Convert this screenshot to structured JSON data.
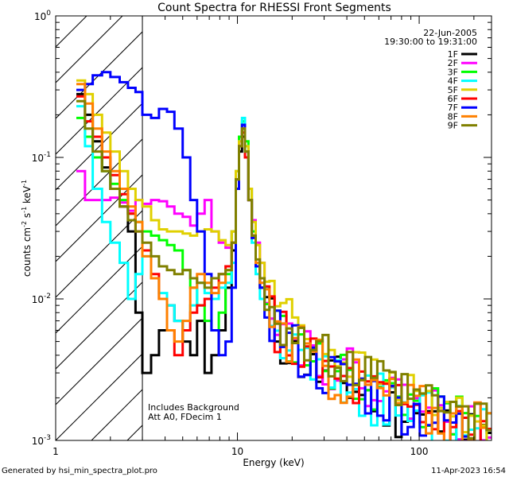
{
  "chart_data": {
    "type": "line",
    "title": "Count Spectra for RHESSI Front Segments",
    "xlabel": "Energy (keV)",
    "ylabel_parts": [
      "counts cm",
      "-2",
      " s",
      "-1",
      " keV",
      "-1"
    ],
    "xscale": "log",
    "yscale": "log",
    "xlim": [
      1,
      250
    ],
    "ylim": [
      0.001,
      1
    ],
    "x_ticks": [
      {
        "value": 1,
        "label": "1"
      },
      {
        "value": 10,
        "label": "10"
      },
      {
        "value": 100,
        "label": "100"
      }
    ],
    "y_ticks": [
      {
        "value": 1,
        "base": "10",
        "exp": "0"
      },
      {
        "value": 0.1,
        "base": "10",
        "exp": "-1"
      },
      {
        "value": 0.01,
        "base": "10",
        "exp": "-2"
      },
      {
        "value": 0.001,
        "base": "10",
        "exp": "-3"
      }
    ],
    "date": "22-Jun-2005",
    "time_range": "19:30:00 to 19:31:00",
    "annotations": [
      "Includes Background",
      "Att A0, FDecim 1"
    ],
    "footer_left": "Generated by hsi_min_spectra_plot.pro",
    "footer_right": "11-Apr-2023 16:54",
    "hatch_region_xmax": 3,
    "energy_edges": [
      1.3,
      1.45,
      1.6,
      1.8,
      2.0,
      2.25,
      2.5,
      2.75,
      3.0,
      3.35,
      3.7,
      4.1,
      4.5,
      5.0,
      5.5,
      6.0,
      6.6,
      7.2,
      7.9,
      8.6,
      9.3,
      9.8,
      10.2,
      10.6,
      11.0,
      11.5,
      12.0,
      12.6,
      13.3,
      14.1,
      15.0,
      16.0,
      17.2,
      18.6,
      20.0,
      21.6,
      23.3,
      25.2,
      27.2,
      29.4,
      31.7,
      34.3,
      37.0,
      40.0,
      43.2,
      46.7,
      50.4,
      54.4,
      58.8,
      63.5,
      68.6,
      74.1,
      80.0,
      86.4,
      93.3,
      100.8,
      108.9,
      117.6,
      127.0,
      137.2,
      148.2,
      160.0,
      172.8,
      186.6,
      201.6,
      217.7,
      235.1,
      250.0
    ],
    "series": [
      {
        "name": "1F",
        "color": "#000000",
        "base": [
          0.28,
          0.2,
          0.13,
          0.085,
          0.06,
          0.045,
          0.03,
          0.008,
          0.003,
          0.004,
          0.006,
          0.009,
          0.007,
          0.005,
          0.004,
          0.007,
          0.003,
          0.004,
          0.006,
          0.012,
          0.022,
          0.06,
          0.11,
          0.14,
          0.1,
          0.05,
          0.028,
          0.018,
          0.012,
          0.009,
          0.007,
          0.006,
          0.005,
          0.0045,
          0.004,
          0.0037,
          0.0034,
          0.0031,
          0.003,
          0.0028,
          0.0027,
          0.0026,
          0.0025,
          0.0024,
          0.0023,
          0.0022,
          0.0021,
          0.002,
          0.0019,
          0.0018,
          0.0017,
          0.0016,
          0.0016,
          0.0015,
          0.0015,
          0.0014,
          0.0014,
          0.0013,
          0.0013,
          0.0012,
          0.0012,
          0.0012,
          0.0011,
          0.0011,
          0.0011,
          0.001,
          0.001
        ],
        "jitter": 0.45,
        "seed": 11
      },
      {
        "name": "2F",
        "color": "#ff00ff",
        "base": [
          0.08,
          0.05,
          0.05,
          0.05,
          0.052,
          0.048,
          0.042,
          0.05,
          0.047,
          0.05,
          0.049,
          0.045,
          0.04,
          0.038,
          0.033,
          0.04,
          0.05,
          0.03,
          0.025,
          0.023,
          0.03,
          0.07,
          0.12,
          0.16,
          0.11,
          0.06,
          0.036,
          0.025,
          0.018,
          0.013,
          0.01,
          0.008,
          0.0068,
          0.006,
          0.0054,
          0.005,
          0.0046,
          0.0042,
          0.0038,
          0.0036,
          0.0034,
          0.0032,
          0.0031,
          0.003,
          0.0028,
          0.0027,
          0.0026,
          0.0025,
          0.0024,
          0.0023,
          0.0022,
          0.0021,
          0.002,
          0.002,
          0.0019,
          0.0018,
          0.0018,
          0.0017,
          0.0016,
          0.0016,
          0.0015,
          0.0015,
          0.0014,
          0.0014,
          0.0013,
          0.0013,
          0.0013
        ],
        "jitter": 0.4,
        "seed": 22
      },
      {
        "name": "3F",
        "color": "#00ff00",
        "base": [
          0.19,
          0.14,
          0.1,
          0.08,
          0.065,
          0.05,
          0.04,
          0.035,
          0.03,
          0.028,
          0.026,
          0.024,
          0.022,
          0.016,
          0.012,
          0.009,
          0.007,
          0.006,
          0.008,
          0.015,
          0.03,
          0.08,
          0.14,
          0.18,
          0.13,
          0.06,
          0.03,
          0.018,
          0.012,
          0.009,
          0.0075,
          0.0065,
          0.0058,
          0.0052,
          0.0047,
          0.0043,
          0.004,
          0.0037,
          0.0034,
          0.0032,
          0.003,
          0.0029,
          0.0028,
          0.0027,
          0.0026,
          0.0025,
          0.0024,
          0.0023,
          0.0022,
          0.0021,
          0.002,
          0.0019,
          0.0019,
          0.0018,
          0.0018,
          0.0017,
          0.0016,
          0.0016,
          0.0015,
          0.0015,
          0.0014,
          0.0014,
          0.0013,
          0.0013,
          0.0012,
          0.0012,
          0.0012
        ],
        "jitter": 0.4,
        "seed": 33
      },
      {
        "name": "4F",
        "color": "#00ffff",
        "base": [
          0.23,
          0.12,
          0.06,
          0.035,
          0.025,
          0.018,
          0.01,
          0.015,
          0.02,
          0.014,
          0.011,
          0.009,
          0.007,
          0.006,
          0.009,
          0.013,
          0.011,
          0.01,
          0.012,
          0.013,
          0.018,
          0.07,
          0.13,
          0.19,
          0.12,
          0.05,
          0.025,
          0.015,
          0.01,
          0.0078,
          0.0065,
          0.0057,
          0.005,
          0.0045,
          0.0041,
          0.0038,
          0.0035,
          0.0032,
          0.003,
          0.0028,
          0.0027,
          0.0026,
          0.0025,
          0.0024,
          0.0023,
          0.0022,
          0.0021,
          0.002,
          0.0019,
          0.0018,
          0.0018,
          0.0017,
          0.0016,
          0.0016,
          0.0015,
          0.0015,
          0.0014,
          0.0014,
          0.0013,
          0.0013,
          0.0012,
          0.0012,
          0.0012,
          0.0011,
          0.0011,
          0.0011,
          0.001
        ],
        "jitter": 0.45,
        "seed": 44
      },
      {
        "name": "5F",
        "color": "#e0d000",
        "base": [
          0.35,
          0.28,
          0.2,
          0.15,
          0.11,
          0.08,
          0.06,
          0.05,
          0.045,
          0.036,
          0.031,
          0.03,
          0.03,
          0.029,
          0.028,
          0.03,
          0.031,
          0.03,
          0.026,
          0.024,
          0.03,
          0.08,
          0.13,
          0.17,
          0.12,
          0.06,
          0.035,
          0.024,
          0.018,
          0.014,
          0.012,
          0.01,
          0.009,
          0.008,
          0.0072,
          0.0066,
          0.006,
          0.0055,
          0.005,
          0.0046,
          0.0043,
          0.004,
          0.0038,
          0.0036,
          0.0034,
          0.0032,
          0.003,
          0.0029,
          0.0027,
          0.0026,
          0.0025,
          0.0024,
          0.0023,
          0.0022,
          0.0021,
          0.002,
          0.0019,
          0.0018,
          0.0018,
          0.0017,
          0.0016,
          0.0016,
          0.0015,
          0.0015,
          0.0014,
          0.0014,
          0.0013
        ],
        "jitter": 0.3,
        "seed": 55
      },
      {
        "name": "6F",
        "color": "#ff0000",
        "base": [
          0.27,
          0.18,
          0.14,
          0.1,
          0.075,
          0.055,
          0.04,
          0.03,
          0.022,
          0.015,
          0.01,
          0.006,
          0.004,
          0.006,
          0.008,
          0.009,
          0.01,
          0.012,
          0.015,
          0.017,
          0.025,
          0.07,
          0.12,
          0.15,
          0.1,
          0.05,
          0.027,
          0.017,
          0.012,
          0.009,
          0.0074,
          0.0063,
          0.0055,
          0.0049,
          0.0044,
          0.004,
          0.0037,
          0.0034,
          0.0032,
          0.003,
          0.0028,
          0.0027,
          0.0026,
          0.0025,
          0.0024,
          0.0023,
          0.0022,
          0.0021,
          0.002,
          0.0019,
          0.0018,
          0.0017,
          0.0017,
          0.0016,
          0.0016,
          0.0015,
          0.0015,
          0.0014,
          0.0014,
          0.0013,
          0.0013,
          0.0012,
          0.0012,
          0.0012,
          0.0011,
          0.0011,
          0.0011
        ],
        "jitter": 0.45,
        "seed": 66
      },
      {
        "name": "7F",
        "color": "#0000ff",
        "base": [
          0.3,
          0.33,
          0.38,
          0.4,
          0.37,
          0.34,
          0.31,
          0.29,
          0.2,
          0.19,
          0.22,
          0.21,
          0.16,
          0.1,
          0.05,
          0.03,
          0.015,
          0.006,
          0.004,
          0.005,
          0.012,
          0.06,
          0.12,
          0.17,
          0.11,
          0.05,
          0.027,
          0.017,
          0.012,
          0.009,
          0.0074,
          0.0063,
          0.0055,
          0.0049,
          0.0044,
          0.004,
          0.0037,
          0.0034,
          0.0032,
          0.003,
          0.0028,
          0.0027,
          0.0026,
          0.0025,
          0.0024,
          0.0023,
          0.0022,
          0.0021,
          0.002,
          0.0019,
          0.0018,
          0.0017,
          0.0017,
          0.0016,
          0.0016,
          0.0015,
          0.0015,
          0.0014,
          0.0014,
          0.0013,
          0.0013,
          0.0012,
          0.0012,
          0.0012,
          0.0011,
          0.0011,
          0.0011
        ],
        "jitter": 0.45,
        "seed": 77
      },
      {
        "name": "8F",
        "color": "#ff8000",
        "base": [
          0.33,
          0.24,
          0.16,
          0.11,
          0.08,
          0.06,
          0.045,
          0.035,
          0.02,
          0.014,
          0.01,
          0.006,
          0.005,
          0.007,
          0.012,
          0.015,
          0.013,
          0.011,
          0.013,
          0.016,
          0.025,
          0.07,
          0.12,
          0.16,
          0.11,
          0.05,
          0.028,
          0.018,
          0.013,
          0.0096,
          0.0078,
          0.0066,
          0.0058,
          0.0052,
          0.0047,
          0.0043,
          0.004,
          0.0037,
          0.0034,
          0.0032,
          0.003,
          0.0029,
          0.0028,
          0.0027,
          0.0026,
          0.0025,
          0.0024,
          0.0023,
          0.0022,
          0.0021,
          0.002,
          0.0019,
          0.0019,
          0.0018,
          0.0018,
          0.0017,
          0.0016,
          0.0016,
          0.0015,
          0.0015,
          0.0014,
          0.0014,
          0.0013,
          0.0013,
          0.0012,
          0.0012,
          0.0012
        ],
        "jitter": 0.45,
        "seed": 88
      },
      {
        "name": "9F",
        "color": "#808000",
        "base": [
          0.25,
          0.16,
          0.11,
          0.08,
          0.06,
          0.045,
          0.036,
          0.03,
          0.025,
          0.02,
          0.017,
          0.016,
          0.015,
          0.016,
          0.014,
          0.013,
          0.012,
          0.014,
          0.015,
          0.016,
          0.025,
          0.07,
          0.12,
          0.16,
          0.11,
          0.05,
          0.028,
          0.019,
          0.014,
          0.011,
          0.009,
          0.0078,
          0.0069,
          0.0062,
          0.0056,
          0.0051,
          0.0047,
          0.0044,
          0.0041,
          0.0038,
          0.0036,
          0.0034,
          0.0032,
          0.0031,
          0.003,
          0.0028,
          0.0027,
          0.0026,
          0.0025,
          0.0024,
          0.0023,
          0.0022,
          0.0021,
          0.002,
          0.002,
          0.0019,
          0.0018,
          0.0018,
          0.0017,
          0.0016,
          0.0016,
          0.0015,
          0.0015,
          0.0014,
          0.0014,
          0.0013,
          0.0013
        ],
        "jitter": 0.4,
        "seed": 99
      }
    ]
  }
}
